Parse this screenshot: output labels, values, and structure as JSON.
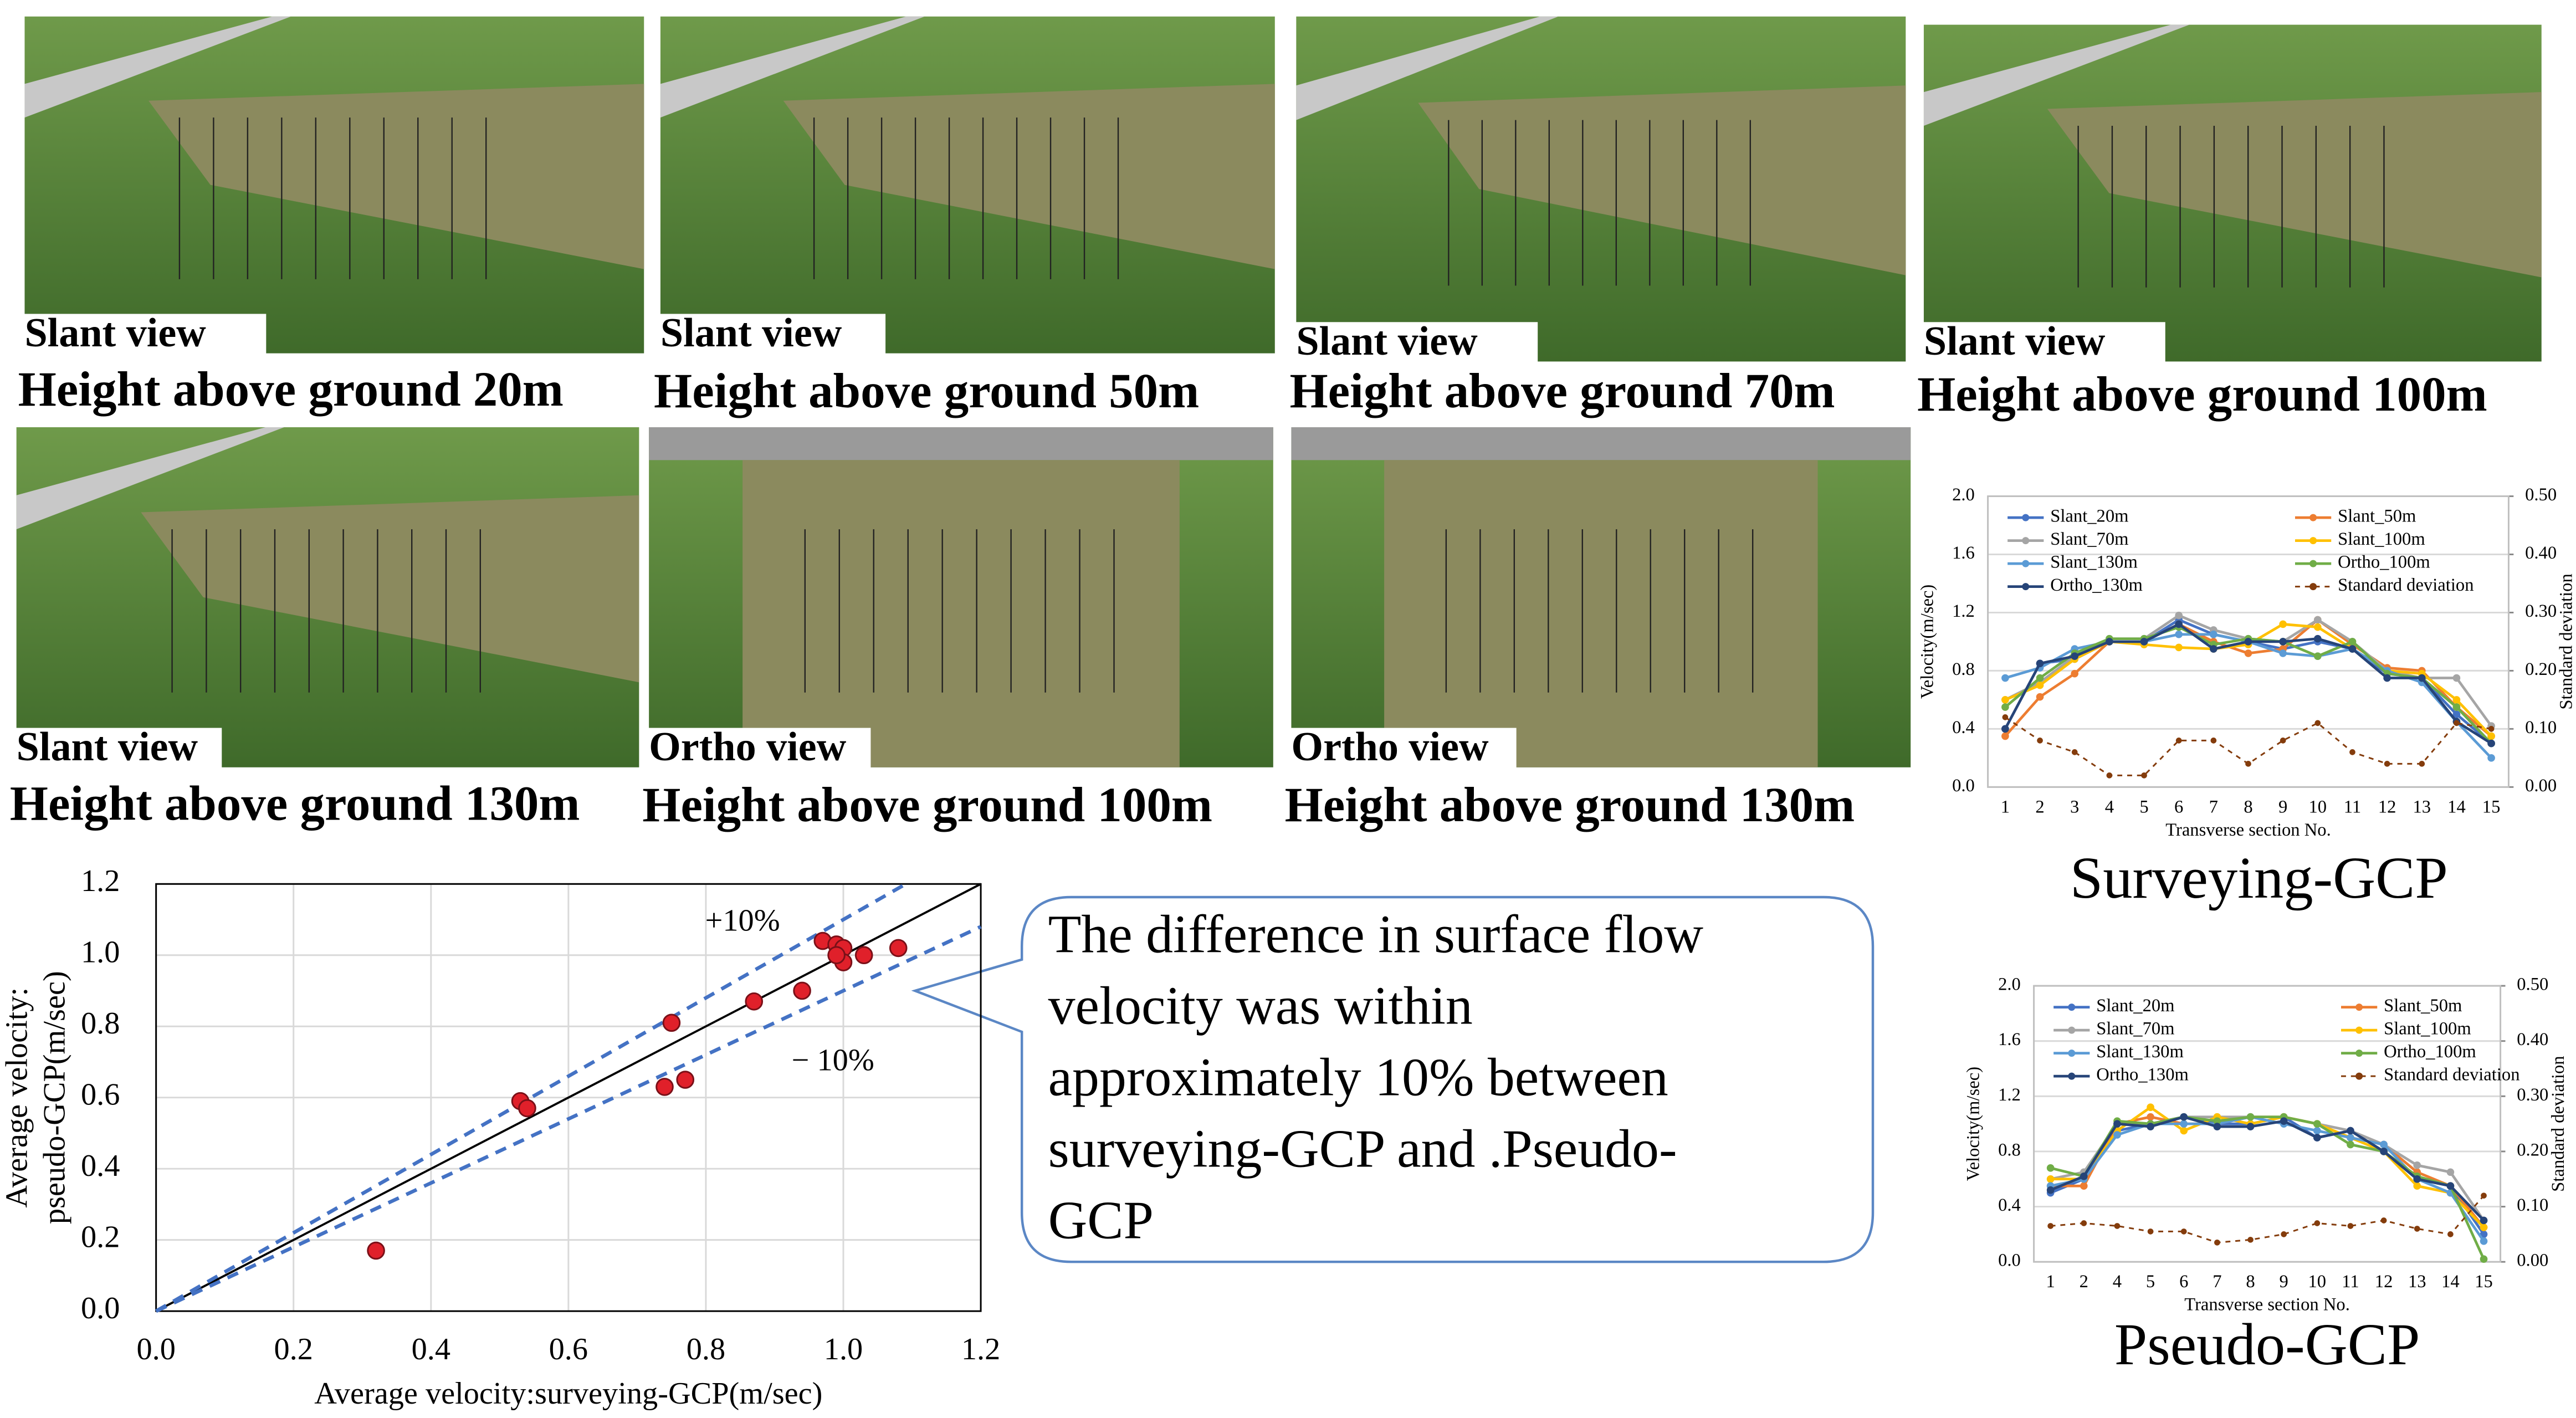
{
  "photos": [
    {
      "view": "Slant view",
      "caption": "Height above ground 20m"
    },
    {
      "view": "Slant view",
      "caption": "Height above ground 50m"
    },
    {
      "view": "Slant view",
      "caption": "Height above ground 70m"
    },
    {
      "view": "Slant view",
      "caption": "Height above ground 100m"
    },
    {
      "view": "Slant view",
      "caption": "Height above ground 130m"
    },
    {
      "view": "Ortho view",
      "caption": "Height above ground 100m"
    },
    {
      "view": "Ortho view",
      "caption": "Height above ground 130m"
    }
  ],
  "callout": {
    "lines": [
      "The difference in surface flow",
      "velocity was within",
      "approximately 10% between",
      "surveying-GCP and .Pseudo-",
      "GCP"
    ]
  },
  "chart_data": [
    {
      "type": "scatter",
      "x": [
        0.32,
        0.53,
        0.54,
        0.75,
        0.74,
        0.77,
        0.87,
        0.94,
        0.97,
        0.99,
        1.0,
        1.0,
        1.03,
        1.08,
        0.99
      ],
      "y": [
        0.17,
        0.59,
        0.57,
        0.81,
        0.63,
        0.65,
        0.87,
        0.9,
        1.04,
        1.03,
        1.02,
        0.98,
        1.0,
        1.02,
        1.0
      ],
      "color": "#e0202a",
      "xlabel": "Average velocity:surveying-GCP(m/sec)",
      "ylabel": [
        "Average velocity:",
        "pseudo-GCP(m/sec)"
      ],
      "xlim": [
        0,
        1.2
      ],
      "ylim": [
        0,
        1.2
      ],
      "xticks": [
        {
          "value": 0,
          "label": "0.0"
        },
        0.2,
        0.4,
        0.6,
        0.8,
        {
          "value": 1,
          "label": "1.0"
        },
        1.2
      ],
      "yticks": [
        {
          "value": 0,
          "label": "0.0"
        },
        0.2,
        0.4,
        0.6,
        0.8,
        {
          "value": 1,
          "label": "1.0"
        },
        1.2
      ],
      "grid": true,
      "reference_lines": [
        {
          "slope": 1,
          "color": "#000000"
        },
        {
          "slope": 1.1,
          "color": "#4472c4",
          "label": "+10%"
        },
        {
          "slope": 0.9,
          "color": "#4472c4",
          "label": "− 10%"
        }
      ]
    },
    {
      "type": "line",
      "caption": "Surveying-GCP",
      "xlabel": "Transverse section No.",
      "ylabel": "Velocity(m/sec)",
      "y2label": "Standard deviation",
      "grid": true,
      "categories": [
        "1",
        "2",
        "3",
        "4",
        "5",
        "6",
        "7",
        "8",
        "9",
        "10",
        "11",
        "12",
        "13",
        "14",
        "15"
      ],
      "ylim": [
        0,
        2
      ],
      "yticks": [
        {
          "value": 0,
          "label": "0.0"
        },
        0.4,
        0.8,
        1.2,
        1.6,
        {
          "value": 2,
          "label": "2.0"
        }
      ],
      "y2lim": [
        0,
        0.5
      ],
      "y2ticks": [
        {
          "value": 0,
          "label": "0.00"
        },
        {
          "value": 0.1,
          "label": "0.10"
        },
        {
          "value": 0.2,
          "label": "0.20"
        },
        {
          "value": 0.3,
          "label": "0.30"
        },
        {
          "value": 0.4,
          "label": "0.40"
        },
        {
          "value": 0.5,
          "label": "0.50"
        }
      ],
      "series": [
        {
          "name": "Slant_20m",
          "color": "#4472c4",
          "values": [
            0.4,
            0.85,
            0.88,
            1.0,
            1.0,
            1.15,
            1.05,
            1.0,
            0.95,
            1.0,
            0.95,
            0.78,
            0.75,
            0.5,
            0.3
          ]
        },
        {
          "name": "Slant_50m",
          "color": "#ed7d31",
          "values": [
            0.35,
            0.62,
            0.78,
            1.0,
            1.0,
            1.12,
            1.0,
            0.92,
            0.95,
            1.15,
            0.98,
            0.82,
            0.8,
            0.55,
            0.35
          ]
        },
        {
          "name": "Slant_70m",
          "color": "#a5a5a5",
          "values": [
            0.6,
            0.72,
            0.9,
            1.02,
            1.02,
            1.18,
            1.08,
            1.02,
            1.0,
            1.15,
            1.0,
            0.8,
            0.75,
            0.75,
            0.42
          ]
        },
        {
          "name": "Slant_100m",
          "color": "#ffc000",
          "values": [
            0.6,
            0.7,
            0.88,
            1.0,
            0.98,
            0.96,
            0.95,
            0.98,
            1.12,
            1.1,
            0.95,
            0.8,
            0.78,
            0.6,
            0.35
          ]
        },
        {
          "name": "Slant_130m",
          "color": "#5b9bd5",
          "values": [
            0.75,
            0.82,
            0.95,
            1.0,
            1.0,
            1.05,
            1.05,
            1.0,
            0.92,
            0.9,
            0.95,
            0.8,
            0.72,
            0.45,
            0.2
          ]
        },
        {
          "name": "Ortho_100m",
          "color": "#70ad47",
          "values": [
            0.55,
            0.75,
            0.92,
            1.02,
            1.02,
            1.1,
            0.98,
            1.02,
            1.0,
            0.9,
            1.0,
            0.78,
            0.75,
            0.55,
            0.3
          ]
        },
        {
          "name": "Ortho_130m",
          "color": "#264478",
          "values": [
            0.4,
            0.85,
            0.9,
            1.0,
            1.0,
            1.12,
            0.95,
            1.0,
            1.0,
            1.02,
            0.95,
            0.75,
            0.75,
            0.45,
            0.3
          ]
        },
        {
          "name": "Standard deviation",
          "color": "#843c0c",
          "axis": "y2",
          "dashed": true,
          "values": [
            0.12,
            0.08,
            0.06,
            0.02,
            0.02,
            0.08,
            0.08,
            0.04,
            0.08,
            0.11,
            0.06,
            0.04,
            0.04,
            0.11,
            0.1
          ]
        }
      ]
    },
    {
      "type": "line",
      "caption": "Pseudo-GCP",
      "xlabel": "Transverse section No.",
      "ylabel": "Velocity(m/sec)",
      "y2label": "Standard deviation",
      "grid": true,
      "categories": [
        "1",
        "2",
        "4",
        "5",
        "6",
        "7",
        "8",
        "9",
        "10",
        "11",
        "12",
        "13",
        "14",
        "15"
      ],
      "ylim": [
        0,
        2
      ],
      "yticks": [
        {
          "value": 0,
          "label": "0.0"
        },
        0.4,
        0.8,
        1.2,
        1.6,
        {
          "value": 2,
          "label": "2.0"
        }
      ],
      "y2lim": [
        0,
        0.5
      ],
      "y2ticks": [
        {
          "value": 0,
          "label": "0.00"
        },
        {
          "value": 0.1,
          "label": "0.10"
        },
        {
          "value": 0.2,
          "label": "0.20"
        },
        {
          "value": 0.3,
          "label": "0.30"
        },
        {
          "value": 0.4,
          "label": "0.40"
        },
        {
          "value": 0.5,
          "label": "0.50"
        }
      ],
      "series": [
        {
          "name": "Slant_20m",
          "color": "#4472c4",
          "values": [
            0.5,
            0.6,
            0.95,
            1.0,
            1.05,
            1.0,
            1.0,
            1.05,
            0.9,
            0.95,
            0.8,
            0.6,
            0.55,
            0.2
          ]
        },
        {
          "name": "Slant_50m",
          "color": "#ed7d31",
          "values": [
            0.55,
            0.55,
            1.0,
            1.05,
            1.0,
            1.0,
            1.05,
            1.05,
            1.0,
            0.9,
            0.85,
            0.65,
            0.55,
            0.25
          ]
        },
        {
          "name": "Slant_70m",
          "color": "#a5a5a5",
          "values": [
            0.6,
            0.65,
            1.0,
            1.0,
            1.05,
            1.05,
            1.05,
            1.05,
            1.0,
            0.95,
            0.85,
            0.7,
            0.65,
            0.3
          ]
        },
        {
          "name": "Slant_100m",
          "color": "#ffc000",
          "values": [
            0.6,
            0.6,
            0.95,
            1.12,
            0.95,
            1.05,
            1.0,
            1.05,
            1.0,
            0.9,
            0.8,
            0.55,
            0.5,
            0.25
          ]
        },
        {
          "name": "Slant_130m",
          "color": "#5b9bd5",
          "values": [
            0.55,
            0.6,
            0.92,
            1.0,
            1.0,
            1.0,
            1.05,
            1.0,
            0.95,
            0.9,
            0.85,
            0.6,
            0.5,
            0.15
          ]
        },
        {
          "name": "Ortho_100m",
          "color": "#70ad47",
          "values": [
            0.68,
            0.62,
            1.02,
            1.0,
            1.05,
            1.02,
            1.05,
            1.05,
            1.0,
            0.85,
            0.8,
            0.62,
            0.55,
            0.02
          ]
        },
        {
          "name": "Ortho_130m",
          "color": "#264478",
          "values": [
            0.52,
            0.62,
            1.0,
            0.98,
            1.05,
            0.98,
            0.98,
            1.02,
            0.9,
            0.95,
            0.8,
            0.6,
            0.55,
            0.3
          ]
        },
        {
          "name": "Standard deviation",
          "color": "#843c0c",
          "axis": "y2",
          "dashed": true,
          "values": [
            0.065,
            0.07,
            0.065,
            0.055,
            0.055,
            0.035,
            0.04,
            0.05,
            0.07,
            0.065,
            0.075,
            0.06,
            0.05,
            0.12
          ]
        }
      ]
    }
  ]
}
